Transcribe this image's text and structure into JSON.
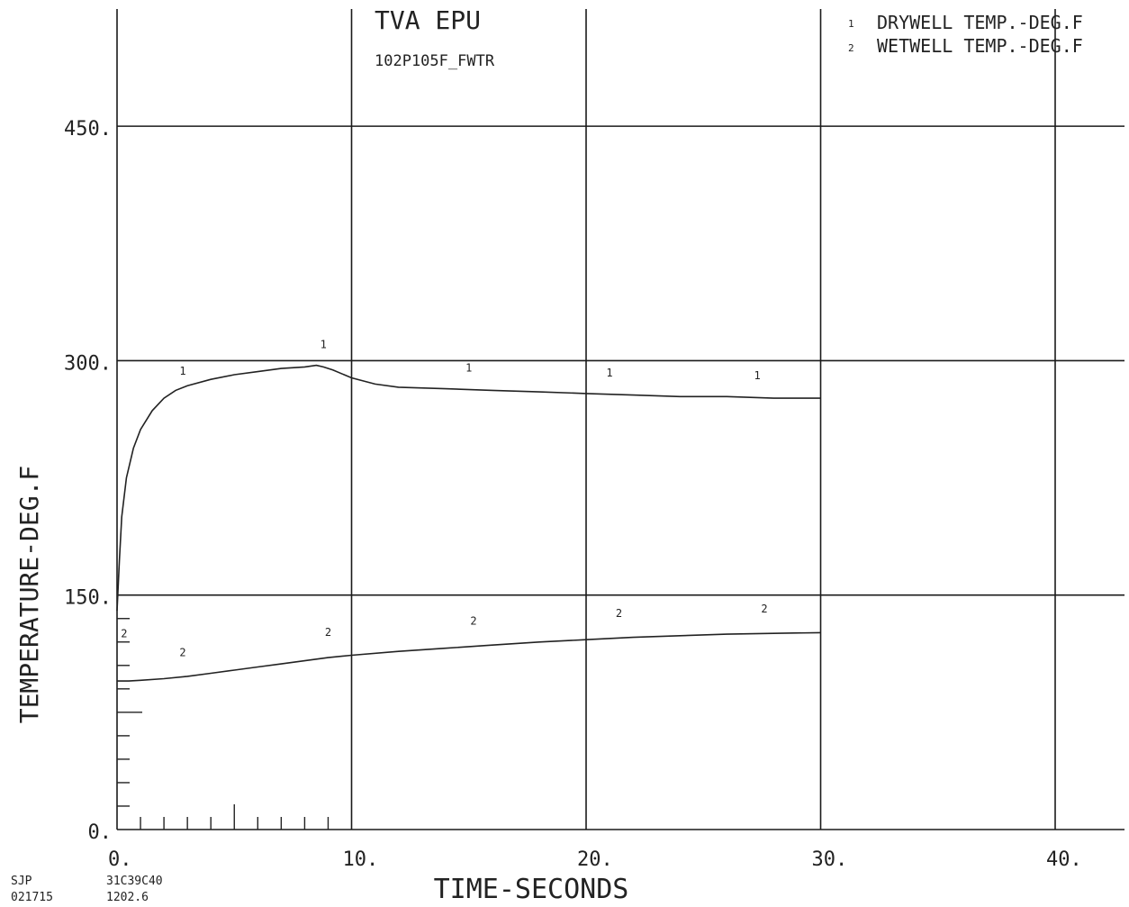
{
  "chart_data": {
    "type": "line",
    "title": "TVA EPU",
    "subtitle": "102P105F_FWTR",
    "xlabel": "TIME-SECONDS",
    "ylabel": "TEMPERATURE-DEG.F",
    "xlim": [
      0,
      43
    ],
    "ylim": [
      0,
      520
    ],
    "x_ticks": [
      0,
      10,
      20,
      30,
      40
    ],
    "x_tick_labels": [
      "0.",
      "10.",
      "20.",
      "30.",
      "40."
    ],
    "y_ticks": [
      0,
      150,
      300,
      450
    ],
    "y_tick_labels": [
      "0.",
      "150.",
      "300.",
      "450."
    ],
    "grid": true,
    "legend": {
      "position": "top-right",
      "entries": [
        {
          "marker": "1",
          "label": "DRYWELL TEMP.-DEG.F"
        },
        {
          "marker": "2",
          "label": "WETWELL TEMP.-DEG.F"
        }
      ]
    },
    "series": [
      {
        "name": "DRYWELL TEMP.-DEG.F",
        "marker": "1",
        "x": [
          0,
          0.1,
          0.2,
          0.4,
          0.7,
          1.0,
          1.5,
          2.0,
          2.5,
          3.0,
          4.0,
          5.0,
          6.0,
          7.0,
          8.0,
          8.5,
          8.8,
          9.2,
          10.0,
          11.0,
          12.0,
          14.0,
          16.0,
          18.0,
          20.0,
          22.0,
          24.0,
          26.0,
          28.0,
          30.0
        ],
        "y": [
          140,
          172,
          200,
          225,
          244,
          256,
          268,
          276,
          281,
          284,
          288,
          291,
          293,
          295,
          296,
          297,
          296,
          294,
          289,
          285,
          283,
          282,
          281,
          280,
          279,
          278,
          277,
          277,
          276,
          276
        ],
        "label_points": [
          [
            2.8,
            291
          ],
          [
            8.8,
            308
          ],
          [
            15.0,
            293
          ],
          [
            21.0,
            290
          ],
          [
            27.3,
            288
          ]
        ]
      },
      {
        "name": "WETWELL TEMP.-DEG.F",
        "marker": "2",
        "x": [
          0,
          0.5,
          1,
          2,
          3,
          4,
          5,
          6,
          7,
          8,
          9,
          10,
          12,
          14,
          16,
          18,
          20,
          22,
          24,
          26,
          28,
          30
        ],
        "y": [
          95,
          95,
          95.5,
          96.5,
          98,
          100,
          102,
          104,
          106,
          108,
          110,
          111.5,
          114,
          116,
          118,
          120,
          121.5,
          123,
          124,
          125,
          125.5,
          126
        ],
        "label_points": [
          [
            0.3,
            123
          ],
          [
            2.8,
            111
          ],
          [
            9.0,
            124
          ],
          [
            15.2,
            131
          ],
          [
            21.4,
            136
          ],
          [
            27.6,
            139
          ]
        ]
      }
    ]
  },
  "footer": {
    "left_line1": "SJP",
    "left_line2": "021715",
    "mid_line1": "31C39C40",
    "mid_line2": "1202.6"
  }
}
